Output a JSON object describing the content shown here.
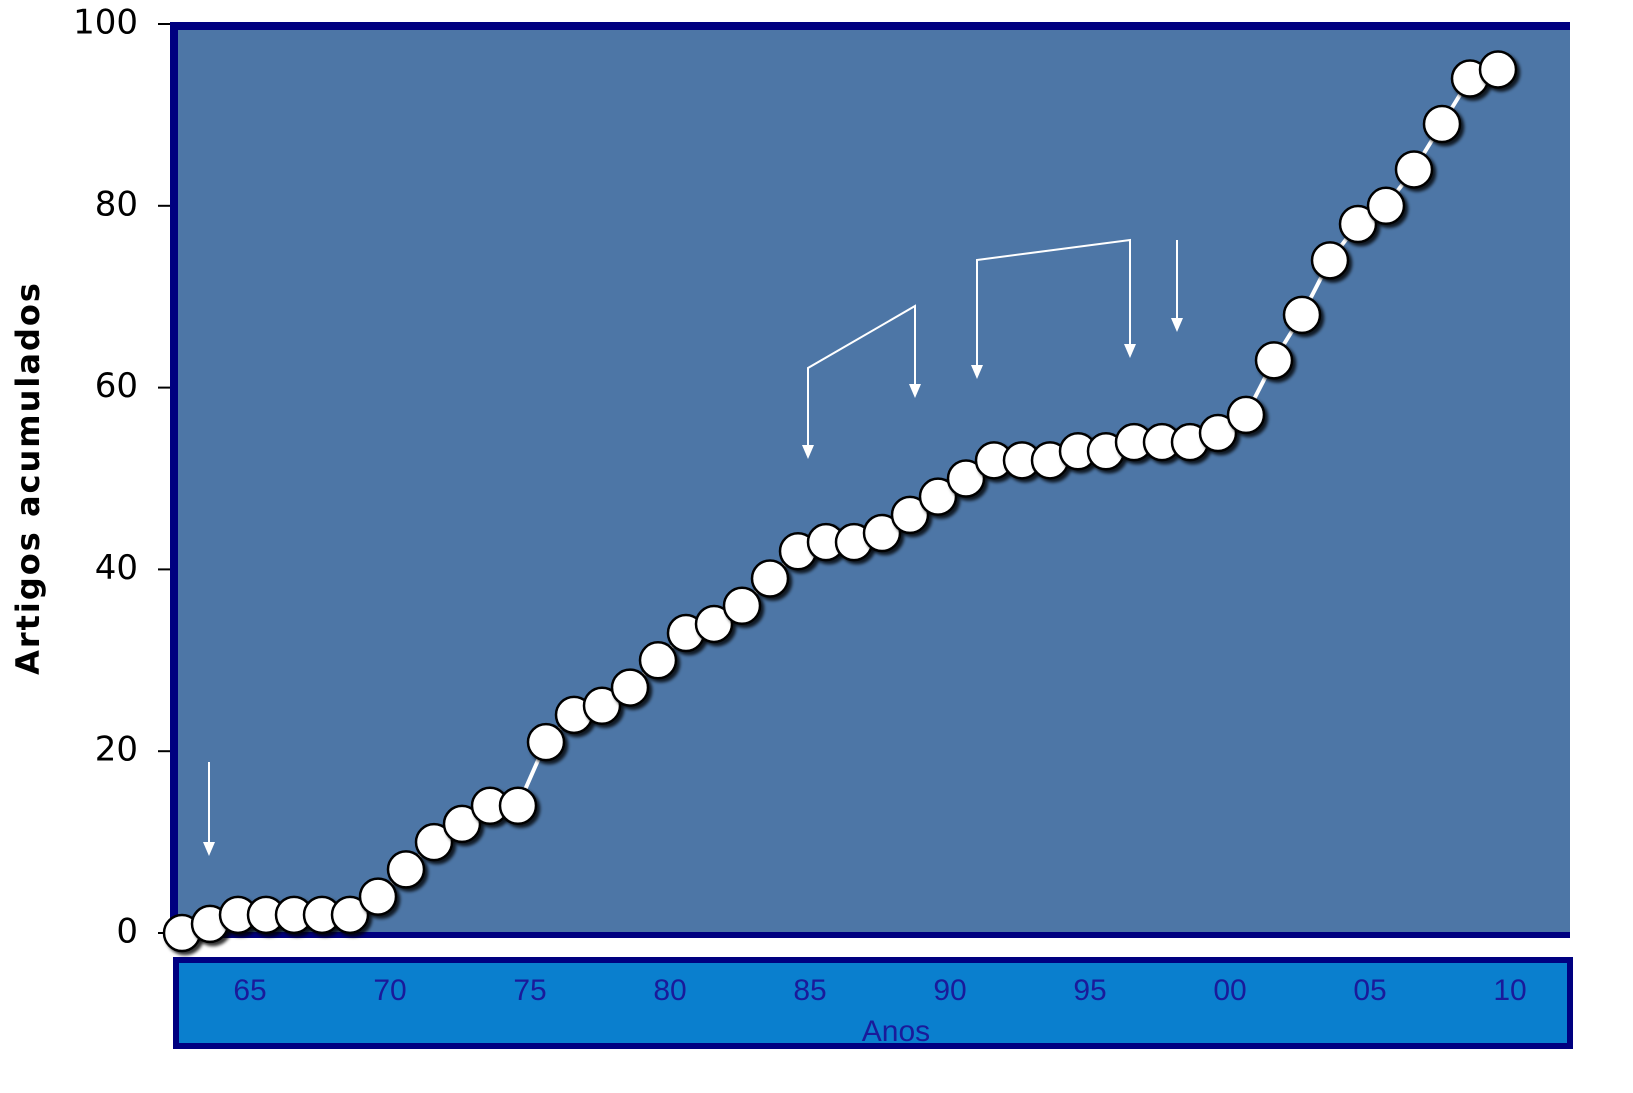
{
  "chart_data": {
    "type": "line",
    "x_label": "Anos",
    "y_label": "Artigos acumulados",
    "categories": [
      null,
      "65",
      null,
      null,
      null,
      null,
      "70",
      null,
      null,
      null,
      null,
      "75",
      null,
      null,
      null,
      null,
      "80",
      null,
      null,
      null,
      null,
      "85",
      null,
      null,
      null,
      null,
      "90",
      null,
      null,
      null,
      null,
      "95",
      null,
      null,
      null,
      null,
      "00",
      null,
      null,
      null,
      null,
      "05",
      null,
      null,
      null,
      null,
      "10",
      null
    ],
    "values": [
      0,
      1,
      2,
      2,
      2,
      2,
      2,
      4,
      7,
      10,
      12,
      14,
      14,
      21,
      24,
      25,
      27,
      30,
      33,
      34,
      36,
      39,
      42,
      43,
      43,
      44,
      46,
      48,
      50,
      52,
      52,
      52,
      53,
      53,
      54,
      54,
      54,
      55,
      57,
      63,
      68,
      74,
      78,
      80,
      84,
      89,
      94,
      95
    ],
    "color": "#ffffff",
    "ylim": [
      0,
      100
    ],
    "yticks": [
      0,
      20,
      40,
      60,
      80,
      100
    ]
  }
}
